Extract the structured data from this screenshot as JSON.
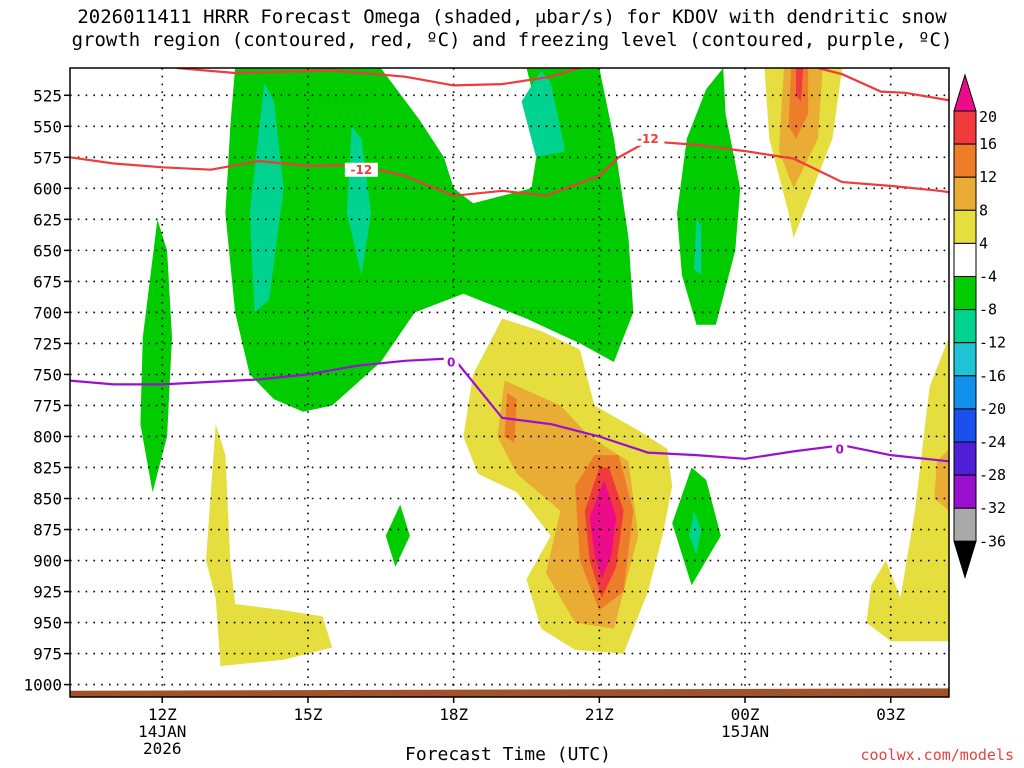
{
  "title": {
    "line1": "2026011411 HRRR Forecast Omega (shaded, μbar/s) for KDOV with dendritic snow",
    "line2": "growth region (contoured, red, ºC) and freezing level (contoured, purple, ºC)"
  },
  "chart_data": {
    "type": "time-height contour",
    "xlabel": "Forecast Time (UTC)",
    "ylabel": "",
    "x_range_hours": [
      10.1,
      28.2
    ],
    "y_range_hPa": [
      1010,
      503
    ],
    "y_ticks": [
      525,
      550,
      575,
      600,
      625,
      650,
      675,
      700,
      725,
      750,
      775,
      800,
      825,
      850,
      875,
      900,
      925,
      950,
      975,
      1000
    ],
    "x_ticks": [
      {
        "hour": 12,
        "label": "12Z",
        "sub1": "14JAN",
        "sub2": "2026"
      },
      {
        "hour": 15,
        "label": "15Z",
        "sub1": "",
        "sub2": ""
      },
      {
        "hour": 18,
        "label": "18Z",
        "sub1": "",
        "sub2": ""
      },
      {
        "hour": 21,
        "label": "21Z",
        "sub1": "",
        "sub2": ""
      },
      {
        "hour": 24,
        "label": "00Z",
        "sub1": "15JAN",
        "sub2": ""
      },
      {
        "hour": 27,
        "label": "03Z",
        "sub1": "",
        "sub2": ""
      }
    ],
    "colorbar": {
      "labels": [
        "20",
        "16",
        "12",
        "8",
        "4",
        "-4",
        "-8",
        "-12",
        "-16",
        "-20",
        "-24",
        "-28",
        "-32",
        "-36"
      ],
      "colors": [
        "#ec0c8a",
        "#f03a3e",
        "#ee7d2a",
        "#e9ac34",
        "#e6dd3f",
        "#ffffff",
        "#00cc00",
        "#00d28f",
        "#1ec4d3",
        "#1291ec",
        "#1a50ec",
        "#4f1fd6",
        "#9a10cf",
        "#a9a9a9"
      ],
      "top_arrow_color": "#ec0c8a",
      "bottom_arrow_color": "#000000"
    },
    "omega_regions": [
      {
        "name": "upward-strong",
        "color": "#00cc00",
        "level": -4,
        "pts": [
          [
            13.5,
            503
          ],
          [
            16.5,
            503
          ],
          [
            17.3,
            545
          ],
          [
            17.8,
            575
          ],
          [
            18.0,
            600
          ],
          [
            18.4,
            612
          ],
          [
            19.6,
            600
          ],
          [
            19.8,
            550
          ],
          [
            19.5,
            503
          ],
          [
            21.0,
            503
          ],
          [
            21.3,
            560
          ],
          [
            21.6,
            640
          ],
          [
            21.7,
            700
          ],
          [
            21.3,
            740
          ],
          [
            20.6,
            725
          ],
          [
            19.5,
            705
          ],
          [
            18.2,
            685
          ],
          [
            17.2,
            700
          ],
          [
            16.5,
            740
          ],
          [
            15.5,
            775
          ],
          [
            14.9,
            780
          ],
          [
            14.3,
            770
          ],
          [
            13.8,
            750
          ],
          [
            13.5,
            700
          ],
          [
            13.3,
            620
          ],
          [
            13.4,
            550
          ]
        ]
      },
      {
        "name": "upward-strong-b",
        "color": "#00cc00",
        "level": -4,
        "pts": [
          [
            23.55,
            503
          ],
          [
            23.2,
            520
          ],
          [
            22.8,
            560
          ],
          [
            22.6,
            620
          ],
          [
            22.7,
            670
          ],
          [
            23.0,
            710
          ],
          [
            23.4,
            710
          ],
          [
            23.8,
            650
          ],
          [
            23.9,
            600
          ],
          [
            23.6,
            540
          ]
        ]
      },
      {
        "name": "upward-strong-c",
        "color": "#00cc00",
        "level": -4,
        "pts": [
          [
            11.9,
            625
          ],
          [
            11.6,
            720
          ],
          [
            11.55,
            790
          ],
          [
            11.8,
            845
          ],
          [
            12.1,
            800
          ],
          [
            12.2,
            720
          ],
          [
            12.1,
            650
          ]
        ]
      },
      {
        "name": "upward-strong-d",
        "color": "#00cc00",
        "level": -4,
        "pts": [
          [
            16.9,
            855
          ],
          [
            16.6,
            880
          ],
          [
            16.8,
            905
          ],
          [
            17.1,
            880
          ]
        ]
      },
      {
        "name": "upward-strong-e",
        "color": "#00cc00",
        "level": -4,
        "pts": [
          [
            22.9,
            825
          ],
          [
            22.5,
            870
          ],
          [
            22.9,
            920
          ],
          [
            23.5,
            880
          ],
          [
            23.2,
            835
          ]
        ]
      },
      {
        "name": "upward-mod-1",
        "color": "#00d28f",
        "level": -8,
        "pts": [
          [
            14.1,
            515
          ],
          [
            13.8,
            620
          ],
          [
            13.9,
            700
          ],
          [
            14.2,
            690
          ],
          [
            14.5,
            600
          ],
          [
            14.3,
            530
          ]
        ]
      },
      {
        "name": "upward-mod-2",
        "color": "#00d28f",
        "level": -8,
        "pts": [
          [
            15.9,
            550
          ],
          [
            15.8,
            620
          ],
          [
            16.1,
            670
          ],
          [
            16.3,
            620
          ],
          [
            16.1,
            560
          ]
        ]
      },
      {
        "name": "upward-mod-3",
        "color": "#00d28f",
        "level": -8,
        "pts": [
          [
            19.8,
            505
          ],
          [
            19.4,
            530
          ],
          [
            19.7,
            575
          ],
          [
            20.3,
            570
          ],
          [
            20.0,
            515
          ]
        ]
      },
      {
        "name": "upward-mod-4",
        "color": "#00d28f",
        "level": -8,
        "pts": [
          [
            23.0,
            625
          ],
          [
            22.95,
            665
          ],
          [
            23.1,
            670
          ],
          [
            23.1,
            630
          ]
        ]
      },
      {
        "name": "upward-mod-5",
        "color": "#00d28f",
        "level": -8,
        "pts": [
          [
            22.95,
            860
          ],
          [
            22.85,
            880
          ],
          [
            23.0,
            895
          ],
          [
            23.1,
            875
          ]
        ]
      },
      {
        "name": "downward-weak-1",
        "color": "#e6dd3f",
        "level": 4,
        "pts": [
          [
            19.0,
            705
          ],
          [
            18.4,
            750
          ],
          [
            18.2,
            800
          ],
          [
            18.5,
            830
          ],
          [
            19.3,
            845
          ],
          [
            20.0,
            880
          ],
          [
            19.5,
            915
          ],
          [
            19.8,
            955
          ],
          [
            20.5,
            972
          ],
          [
            21.5,
            975
          ],
          [
            22.0,
            925
          ],
          [
            22.3,
            880
          ],
          [
            22.5,
            840
          ],
          [
            22.4,
            810
          ],
          [
            21.8,
            795
          ],
          [
            20.9,
            775
          ],
          [
            20.6,
            730
          ],
          [
            19.8,
            715
          ]
        ]
      },
      {
        "name": "downward-weak-2",
        "color": "#e6dd3f",
        "level": 4,
        "pts": [
          [
            13.1,
            790
          ],
          [
            12.9,
            900
          ],
          [
            13.1,
            930
          ],
          [
            13.2,
            985
          ],
          [
            14.5,
            980
          ],
          [
            15.5,
            970
          ],
          [
            15.3,
            945
          ],
          [
            14.5,
            940
          ],
          [
            13.5,
            935
          ],
          [
            13.4,
            900
          ],
          [
            13.3,
            815
          ]
        ]
      },
      {
        "name": "downward-weak-3",
        "color": "#e6dd3f",
        "level": 4,
        "pts": [
          [
            24.4,
            503
          ],
          [
            24.5,
            560
          ],
          [
            24.9,
            620
          ],
          [
            25.0,
            640
          ],
          [
            25.2,
            620
          ],
          [
            25.8,
            560
          ],
          [
            26.0,
            503
          ]
        ]
      },
      {
        "name": "downward-weak-4",
        "color": "#e6dd3f",
        "level": 4,
        "pts": [
          [
            26.6,
            920
          ],
          [
            26.5,
            950
          ],
          [
            27.0,
            965
          ],
          [
            28.2,
            965
          ],
          [
            28.2,
            720
          ],
          [
            27.8,
            760
          ],
          [
            27.5,
            860
          ],
          [
            27.2,
            930
          ],
          [
            26.9,
            900
          ]
        ]
      },
      {
        "name": "downward-mod-1",
        "color": "#e9ac34",
        "level": 8,
        "pts": [
          [
            19.05,
            755
          ],
          [
            18.9,
            800
          ],
          [
            19.3,
            830
          ],
          [
            20.2,
            860
          ],
          [
            19.9,
            910
          ],
          [
            20.5,
            950
          ],
          [
            21.3,
            955
          ],
          [
            21.8,
            880
          ],
          [
            21.6,
            820
          ],
          [
            20.8,
            800
          ],
          [
            20.2,
            775
          ]
        ]
      },
      {
        "name": "downward-mod-2",
        "color": "#e9ac34",
        "level": 8,
        "pts": [
          [
            24.8,
            503
          ],
          [
            24.7,
            570
          ],
          [
            25.0,
            600
          ],
          [
            25.5,
            560
          ],
          [
            25.6,
            503
          ]
        ]
      },
      {
        "name": "downward-mod-3",
        "color": "#e9ac34",
        "level": 8,
        "pts": [
          [
            27.95,
            820
          ],
          [
            27.9,
            850
          ],
          [
            28.2,
            860
          ],
          [
            28.2,
            810
          ]
        ]
      },
      {
        "name": "downward-high-1",
        "color": "#ee7d2a",
        "level": 12,
        "pts": [
          [
            19.1,
            765
          ],
          [
            19.05,
            800
          ],
          [
            19.25,
            805
          ],
          [
            19.3,
            770
          ]
        ]
      },
      {
        "name": "downward-high-2",
        "color": "#ee7d2a",
        "level": 12,
        "pts": [
          [
            20.9,
            815
          ],
          [
            20.5,
            840
          ],
          [
            20.6,
            900
          ],
          [
            21.0,
            940
          ],
          [
            21.5,
            925
          ],
          [
            21.7,
            860
          ],
          [
            21.4,
            815
          ]
        ]
      },
      {
        "name": "downward-high-3",
        "color": "#ee7d2a",
        "level": 12,
        "pts": [
          [
            24.95,
            503
          ],
          [
            24.9,
            550
          ],
          [
            25.05,
            560
          ],
          [
            25.3,
            540
          ],
          [
            25.3,
            503
          ]
        ]
      },
      {
        "name": "downward-strong-1",
        "color": "#f03a3e",
        "level": 16,
        "pts": [
          [
            21.0,
            825
          ],
          [
            20.7,
            860
          ],
          [
            20.8,
            900
          ],
          [
            21.05,
            930
          ],
          [
            21.35,
            905
          ],
          [
            21.5,
            860
          ],
          [
            21.2,
            825
          ]
        ]
      },
      {
        "name": "downward-strong-2",
        "color": "#f03a3e",
        "level": 16,
        "pts": [
          [
            25.05,
            503
          ],
          [
            25.05,
            525
          ],
          [
            25.15,
            530
          ],
          [
            25.2,
            503
          ]
        ]
      },
      {
        "name": "downward-extreme-1",
        "color": "#ec0c8a",
        "level": 20,
        "pts": [
          [
            21.1,
            835
          ],
          [
            20.8,
            865
          ],
          [
            20.9,
            895
          ],
          [
            21.05,
            915
          ],
          [
            21.25,
            895
          ],
          [
            21.35,
            865
          ]
        ]
      }
    ],
    "isotherm_minus12": {
      "color": "#f03a3e",
      "label": "-12",
      "label_positions": [
        [
          16.1,
          585
        ],
        [
          22.0,
          560
        ]
      ],
      "segments": [
        [
          [
            10.1,
            575
          ],
          [
            11.0,
            580
          ],
          [
            12.0,
            583
          ],
          [
            13.0,
            585
          ],
          [
            14.0,
            578
          ],
          [
            15.0,
            582
          ],
          [
            16.0,
            581
          ],
          [
            17.0,
            590
          ],
          [
            18.0,
            606
          ],
          [
            19.0,
            602
          ],
          [
            19.9,
            606
          ],
          [
            21.0,
            590
          ],
          [
            21.4,
            575
          ],
          [
            22.0,
            562
          ],
          [
            23.0,
            565
          ],
          [
            24.0,
            570
          ],
          [
            25.0,
            576
          ],
          [
            26.0,
            595
          ],
          [
            27.0,
            598
          ],
          [
            28.0,
            602
          ],
          [
            28.2,
            603
          ]
        ],
        [
          [
            12.3,
            503
          ],
          [
            13.5,
            507
          ],
          [
            15.5,
            505
          ],
          [
            17.0,
            510
          ],
          [
            18.0,
            517
          ],
          [
            19.0,
            516
          ],
          [
            20.0,
            510
          ],
          [
            20.6,
            503
          ]
        ],
        [
          [
            25.5,
            503
          ],
          [
            26.0,
            508
          ],
          [
            26.8,
            522
          ],
          [
            27.3,
            523
          ],
          [
            28.2,
            529
          ]
        ]
      ]
    },
    "isotherm_zero": {
      "color": "#9a10cf",
      "label": "0",
      "label_positions": [
        [
          17.95,
          740
        ],
        [
          25.95,
          810
        ]
      ],
      "points": [
        [
          10.1,
          755
        ],
        [
          11.0,
          758
        ],
        [
          12.0,
          758
        ],
        [
          13.0,
          756
        ],
        [
          14.0,
          754
        ],
        [
          15.0,
          750
        ],
        [
          16.0,
          743
        ],
        [
          17.0,
          739
        ],
        [
          18.0,
          737
        ],
        [
          19.0,
          785
        ],
        [
          20.0,
          790
        ],
        [
          21.0,
          800
        ],
        [
          22.0,
          813
        ],
        [
          23.0,
          815
        ],
        [
          24.0,
          818
        ],
        [
          25.0,
          812
        ],
        [
          26.0,
          807
        ],
        [
          27.0,
          815
        ],
        [
          28.2,
          820
        ]
      ]
    },
    "terrain": {
      "color": "#a0522d",
      "top_hPa_start": 1005,
      "top_hPa_end": 1003
    }
  },
  "credit": "coolwx.com/models",
  "axis": {
    "xlabel": "Forecast Time (UTC)"
  }
}
